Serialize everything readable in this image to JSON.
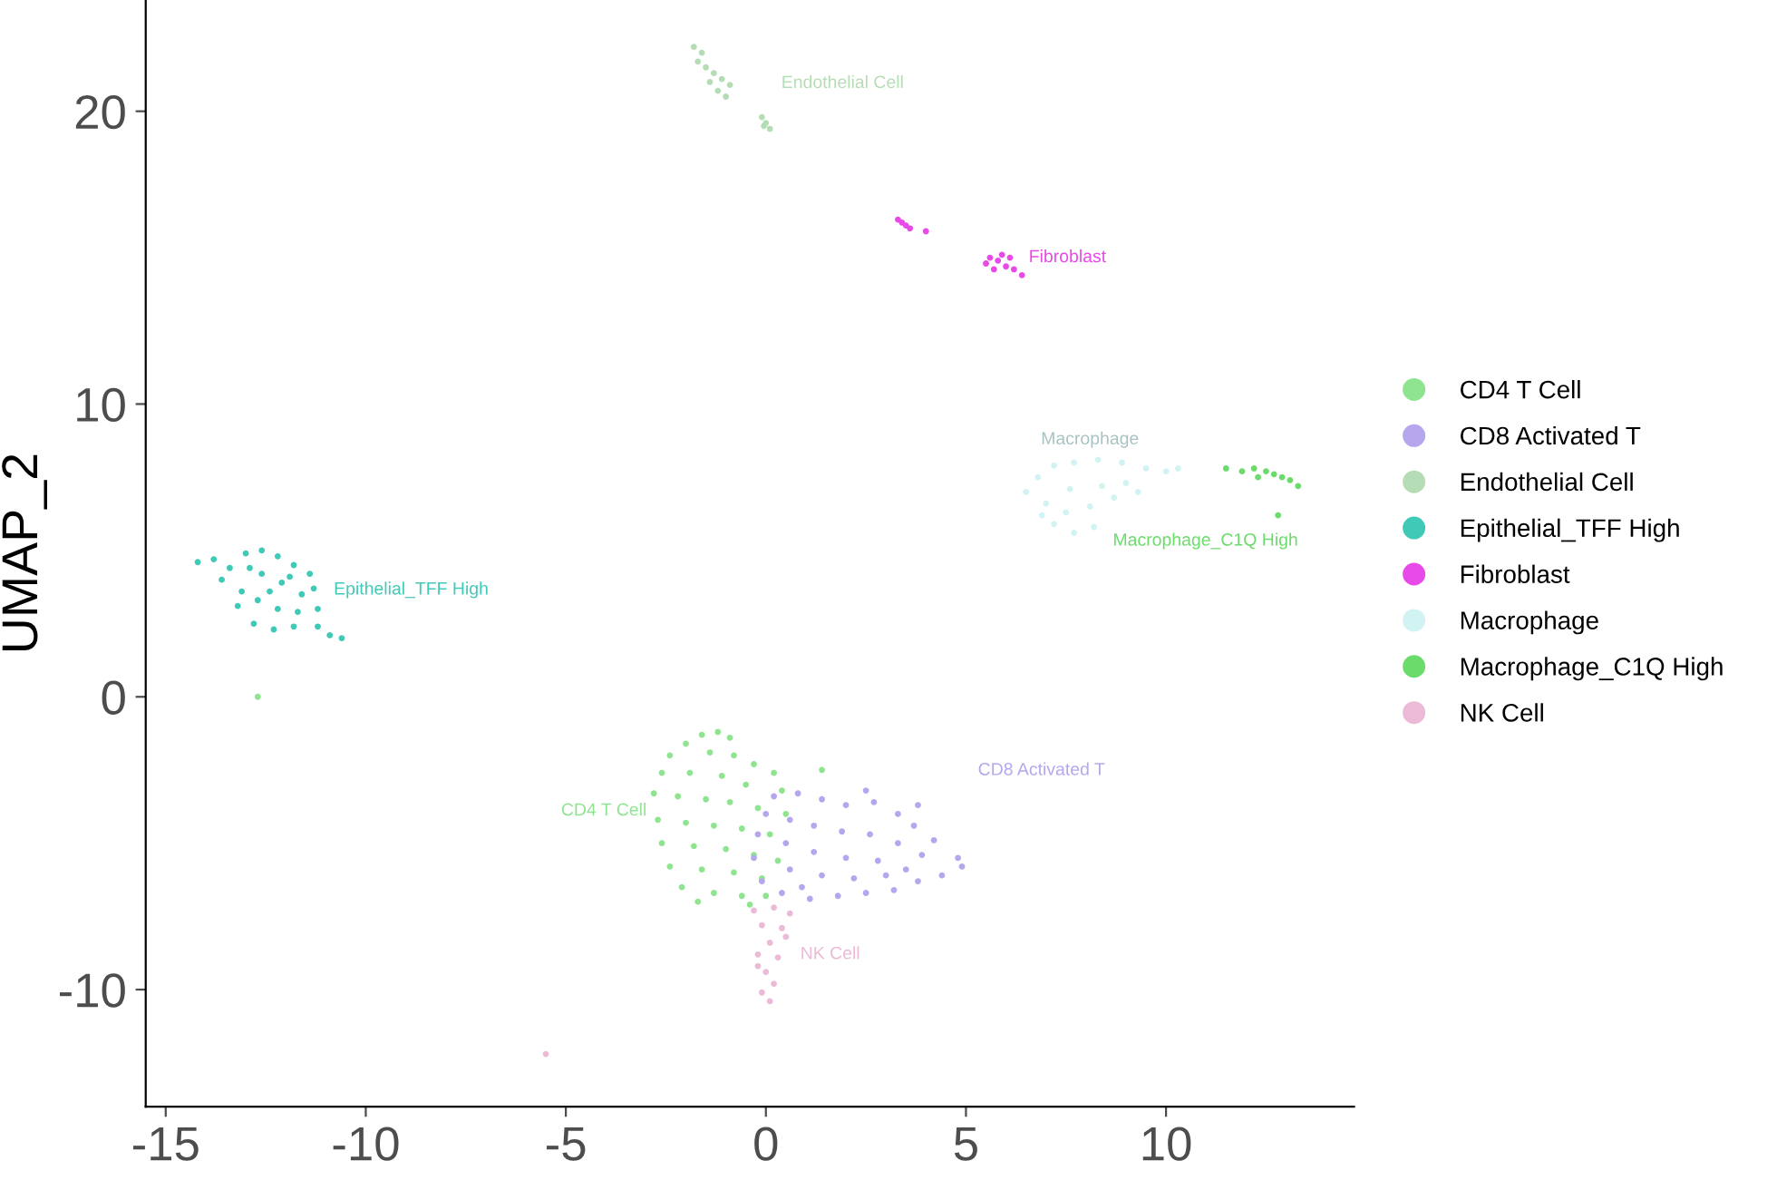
{
  "chart_data": {
    "type": "scatter",
    "ylabel": "UMAP_2",
    "xlim": [
      -15.5,
      14.7
    ],
    "ylim": [
      -14,
      23.8
    ],
    "xticks": [
      -15,
      -10,
      -5,
      0,
      5,
      10
    ],
    "yticks": [
      -10,
      0,
      10,
      20
    ],
    "grid": false,
    "legend": "right",
    "marker": "circle",
    "series": [
      {
        "name": "CD4 T Cell",
        "color": "#8fe58f",
        "x": [
          -1.6,
          -1.2,
          -0.9,
          -2.0,
          -2.4,
          -1.4,
          -0.8,
          -0.3,
          0.2,
          -2.6,
          -1.9,
          -1.1,
          -0.5,
          0.4,
          -2.8,
          -2.2,
          -1.5,
          -0.9,
          -0.2,
          0.5,
          -2.7,
          -2.0,
          -1.3,
          -0.6,
          0.1,
          -2.6,
          -1.8,
          -1.0,
          -0.3,
          0.3,
          -2.4,
          -1.6,
          -0.8,
          -0.1,
          -2.1,
          -1.3,
          -0.6,
          -1.7,
          -0.4,
          0.0,
          1.4,
          -12.7
        ],
        "values": [
          -1.3,
          -1.2,
          -1.4,
          -1.6,
          -2.0,
          -1.9,
          -2.0,
          -2.3,
          -2.6,
          -2.6,
          -2.6,
          -2.7,
          -3.0,
          -3.2,
          -3.3,
          -3.4,
          -3.5,
          -3.6,
          -3.8,
          -4.0,
          -4.2,
          -4.3,
          -4.4,
          -4.5,
          -4.7,
          -5.0,
          -5.1,
          -5.2,
          -5.4,
          -5.6,
          -5.8,
          -5.9,
          -6.0,
          -6.2,
          -6.5,
          -6.7,
          -6.8,
          -7.0,
          -7.1,
          -6.8,
          -2.5,
          0.0
        ]
      },
      {
        "name": "CD8 Activated T",
        "color": "#b5a6ee",
        "x": [
          0.2,
          0.8,
          1.4,
          2.0,
          2.7,
          3.3,
          3.7,
          4.2,
          4.8,
          4.9,
          4.4,
          3.8,
          3.2,
          2.5,
          1.8,
          1.1,
          0.4,
          -0.1,
          -0.3,
          -0.2,
          0.0,
          0.6,
          1.2,
          1.9,
          2.6,
          3.3,
          3.9,
          0.5,
          1.2,
          2.0,
          2.8,
          3.5,
          0.6,
          1.4,
          2.2,
          3.0,
          0.9,
          2.5,
          3.8
        ],
        "values": [
          -3.4,
          -3.3,
          -3.5,
          -3.7,
          -3.6,
          -4.0,
          -4.4,
          -4.9,
          -5.5,
          -5.8,
          -6.1,
          -6.3,
          -6.6,
          -6.7,
          -6.8,
          -6.9,
          -6.7,
          -6.3,
          -5.5,
          -4.7,
          -4.0,
          -4.2,
          -4.4,
          -4.6,
          -4.7,
          -5.0,
          -5.4,
          -5.0,
          -5.3,
          -5.5,
          -5.6,
          -5.9,
          -5.9,
          -6.1,
          -6.2,
          -6.1,
          -6.5,
          -3.2,
          -3.7
        ]
      },
      {
        "name": "Endothelial Cell",
        "color": "#b5ddb5",
        "x": [
          -1.8,
          -1.6,
          -1.7,
          -1.5,
          -1.3,
          -1.4,
          -1.1,
          -1.2,
          -1.0,
          -0.9,
          -0.1,
          0.0,
          0.1,
          -0.05
        ],
        "values": [
          22.2,
          22.0,
          21.7,
          21.5,
          21.3,
          21.0,
          21.1,
          20.7,
          20.5,
          20.9,
          19.8,
          19.6,
          19.4,
          19.5
        ]
      },
      {
        "name": "Epithelial_TFF High",
        "color": "#3fc9b6",
        "x": [
          -14.2,
          -13.8,
          -13.4,
          -13.0,
          -12.6,
          -12.2,
          -11.8,
          -11.4,
          -11.3,
          -13.6,
          -13.1,
          -12.6,
          -12.1,
          -11.6,
          -13.2,
          -12.7,
          -12.2,
          -11.7,
          -11.2,
          -12.8,
          -12.3,
          -11.8,
          -11.2,
          -10.9,
          -10.6,
          -12.9,
          -12.4,
          -11.9
        ],
        "values": [
          4.6,
          4.7,
          4.4,
          4.9,
          5.0,
          4.8,
          4.5,
          4.2,
          3.7,
          4.0,
          3.6,
          4.2,
          3.9,
          3.5,
          3.1,
          3.3,
          3.0,
          2.9,
          3.0,
          2.5,
          2.3,
          2.4,
          2.4,
          2.1,
          2.0,
          4.4,
          3.6,
          4.1
        ]
      },
      {
        "name": "Fibroblast",
        "color": "#e84ae8",
        "x": [
          3.3,
          3.4,
          3.5,
          3.6,
          4.0,
          5.5,
          5.7,
          5.9,
          6.0,
          6.1,
          6.2,
          6.4,
          5.8,
          5.6
        ],
        "values": [
          16.3,
          16.2,
          16.1,
          16.0,
          15.9,
          14.8,
          14.6,
          15.1,
          14.7,
          15.0,
          14.6,
          14.4,
          14.9,
          15.0
        ]
      },
      {
        "name": "Macrophage",
        "color": "#d2f3f3",
        "x": [
          6.5,
          6.8,
          7.2,
          7.7,
          8.3,
          8.9,
          9.5,
          10.0,
          10.3,
          9.0,
          8.4,
          7.6,
          7.0,
          7.5,
          8.1,
          8.7,
          9.3,
          7.2,
          7.7,
          8.2,
          6.9
        ],
        "values": [
          7.0,
          7.5,
          7.9,
          8.0,
          8.1,
          8.0,
          7.8,
          7.7,
          7.8,
          7.3,
          7.2,
          7.1,
          6.6,
          6.3,
          6.5,
          6.8,
          7.0,
          5.9,
          5.6,
          5.8,
          6.2
        ]
      },
      {
        "name": "Macrophage_C1Q High",
        "color": "#6bdb6b",
        "x": [
          11.5,
          11.9,
          12.2,
          12.5,
          12.7,
          12.9,
          13.1,
          13.3,
          12.3,
          12.8
        ],
        "values": [
          7.8,
          7.7,
          7.8,
          7.7,
          7.6,
          7.5,
          7.4,
          7.2,
          7.5,
          6.2
        ]
      },
      {
        "name": "NK Cell",
        "color": "#ebbad6",
        "x": [
          -0.3,
          0.2,
          0.6,
          -0.1,
          0.4,
          0.1,
          -0.2,
          0.3,
          0.0,
          0.2,
          -0.1,
          0.1,
          -0.2,
          0.5,
          -5.5
        ],
        "values": [
          -7.3,
          -7.2,
          -7.4,
          -7.8,
          -7.9,
          -8.4,
          -8.8,
          -8.9,
          -9.4,
          -9.8,
          -10.1,
          -10.4,
          -9.2,
          -8.2,
          -12.2
        ]
      }
    ],
    "annotations": [
      "CD4 T Cell",
      "CD8 Activated T",
      "Endothelial Cell",
      "Epithelial_TFF High",
      "Fibroblast",
      "Macrophage",
      "Macrophage_C1Q High",
      "NK Cell"
    ]
  }
}
